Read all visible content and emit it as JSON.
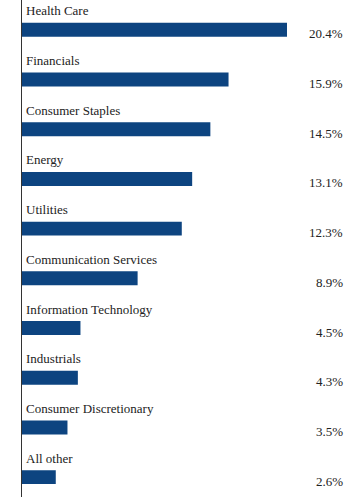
{
  "chart_data": {
    "type": "bar",
    "orientation": "horizontal",
    "categories": [
      "Health Care",
      "Financials",
      "Consumer Staples",
      "Energy",
      "Utilities",
      "Communication Services",
      "Information Technology",
      "Industrials",
      "Consumer Discretionary",
      "All other"
    ],
    "values": [
      20.4,
      15.9,
      14.5,
      13.1,
      12.3,
      8.9,
      4.5,
      4.3,
      3.5,
      2.6
    ],
    "value_labels": [
      "20.4%",
      "15.9%",
      "14.5%",
      "13.1%",
      "12.3%",
      "8.9%",
      "4.5%",
      "4.3%",
      "3.5%",
      "2.6%"
    ],
    "color": "#0d4480",
    "xlim": [
      0,
      20.4
    ],
    "data_labels": true,
    "tick_labels": false,
    "grid": false
  }
}
